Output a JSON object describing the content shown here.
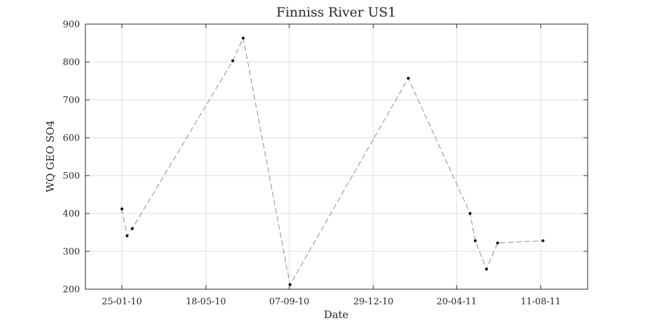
{
  "chart_data": {
    "type": "line",
    "title": "Finniss River US1",
    "xlabel": "Date",
    "ylabel": "WQ GEO SO4",
    "x_tick_labels": [
      "25-01-10",
      "18-05-10",
      "07-09-10",
      "29-12-10",
      "20-04-11",
      "11-08-11"
    ],
    "x_tick_dates": [
      "2010-01-25",
      "2010-05-18",
      "2010-09-07",
      "2010-12-29",
      "2011-04-20",
      "2011-08-11"
    ],
    "xlim": [
      "2009-12-07",
      "2011-10-13"
    ],
    "y_tick_labels": [
      "200",
      "300",
      "400",
      "500",
      "600",
      "700",
      "800",
      "900"
    ],
    "ylim": [
      200,
      900
    ],
    "grid": true,
    "line_style": "dashed",
    "line_color": "#8c8c8c",
    "marker_color": "#000000",
    "series": [
      {
        "points": [
          {
            "x": "2010-01-25",
            "y": 412
          },
          {
            "x": "2010-02-01",
            "y": 341
          },
          {
            "x": "2010-02-08",
            "y": 360
          },
          {
            "x": "2010-06-23",
            "y": 803
          },
          {
            "x": "2010-07-07",
            "y": 863
          },
          {
            "x": "2010-09-08",
            "y": 212
          },
          {
            "x": "2011-02-14",
            "y": 757
          },
          {
            "x": "2011-05-08",
            "y": 400
          },
          {
            "x": "2011-05-15",
            "y": 328
          },
          {
            "x": "2011-05-30",
            "y": 253
          },
          {
            "x": "2011-06-14",
            "y": 322
          },
          {
            "x": "2011-08-14",
            "y": 328
          }
        ]
      }
    ]
  }
}
